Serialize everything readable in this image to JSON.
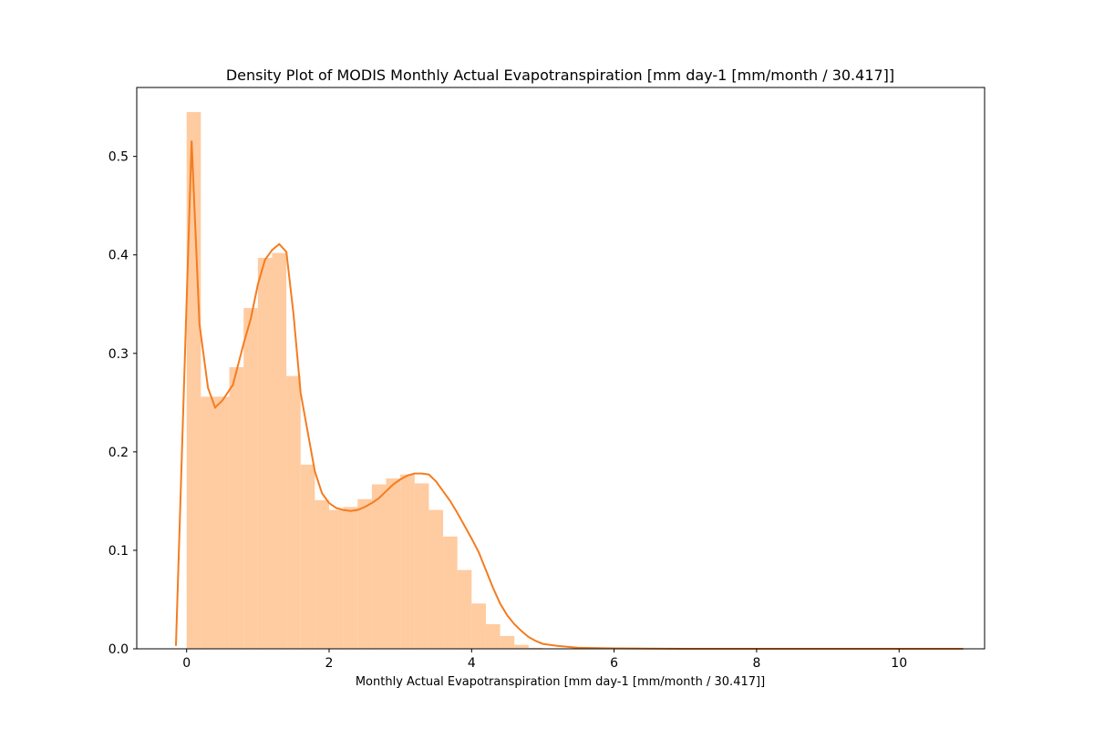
{
  "chart_data": {
    "type": "bar",
    "title": "Density Plot of MODIS Monthly Actual Evapotranspiration [mm day-1 [mm/month / 30.417]]",
    "xlabel": "Monthly Actual Evapotranspiration [mm day-1 [mm/month / 30.417]]",
    "ylabel": "",
    "xlim": [
      -0.7,
      11.2
    ],
    "ylim": [
      0,
      0.57
    ],
    "xticks": [
      0,
      2,
      4,
      6,
      8,
      10
    ],
    "yticks": [
      0.0,
      0.1,
      0.2,
      0.3,
      0.4,
      0.5
    ],
    "grid": false,
    "colors": {
      "bars": "#ffcba0",
      "kde": "#f47c20",
      "axes": "#000000"
    },
    "histogram": {
      "bin_edges": [
        0.0,
        0.2,
        0.4,
        0.6,
        0.8,
        1.0,
        1.2,
        1.4,
        1.6,
        1.8,
        2.0,
        2.2,
        2.4,
        2.6,
        2.8,
        3.0,
        3.2,
        3.4,
        3.6,
        3.8,
        4.0,
        4.2,
        4.4,
        4.6,
        4.8,
        5.0
      ],
      "values": [
        0.545,
        0.256,
        0.256,
        0.286,
        0.346,
        0.397,
        0.402,
        0.277,
        0.187,
        0.151,
        0.141,
        0.144,
        0.152,
        0.167,
        0.173,
        0.177,
        0.168,
        0.141,
        0.114,
        0.08,
        0.046,
        0.025,
        0.013,
        0.004,
        0.001
      ]
    },
    "kde": {
      "x": [
        -0.15,
        0.07,
        0.18,
        0.3,
        0.4,
        0.5,
        0.65,
        0.8,
        0.9,
        1.0,
        1.1,
        1.2,
        1.3,
        1.4,
        1.5,
        1.6,
        1.7,
        1.8,
        1.9,
        2.0,
        2.1,
        2.2,
        2.3,
        2.4,
        2.5,
        2.6,
        2.7,
        2.8,
        2.9,
        3.0,
        3.1,
        3.2,
        3.3,
        3.4,
        3.5,
        3.6,
        3.7,
        3.8,
        3.9,
        4.0,
        4.1,
        4.2,
        4.3,
        4.4,
        4.5,
        4.6,
        4.7,
        4.8,
        4.9,
        5.0,
        5.2,
        5.5,
        6.0,
        7.0,
        8.0,
        9.0,
        10.0,
        10.9
      ],
      "y": [
        0.003,
        0.516,
        0.33,
        0.265,
        0.245,
        0.252,
        0.268,
        0.31,
        0.335,
        0.37,
        0.395,
        0.405,
        0.411,
        0.403,
        0.34,
        0.26,
        0.22,
        0.18,
        0.158,
        0.148,
        0.143,
        0.141,
        0.14,
        0.141,
        0.144,
        0.148,
        0.153,
        0.16,
        0.167,
        0.172,
        0.176,
        0.178,
        0.178,
        0.177,
        0.17,
        0.16,
        0.15,
        0.138,
        0.125,
        0.112,
        0.098,
        0.08,
        0.062,
        0.046,
        0.034,
        0.025,
        0.018,
        0.012,
        0.008,
        0.005,
        0.003,
        0.001,
        0.0005,
        0.0,
        0.0,
        0.0,
        0.0,
        0.0
      ]
    }
  }
}
